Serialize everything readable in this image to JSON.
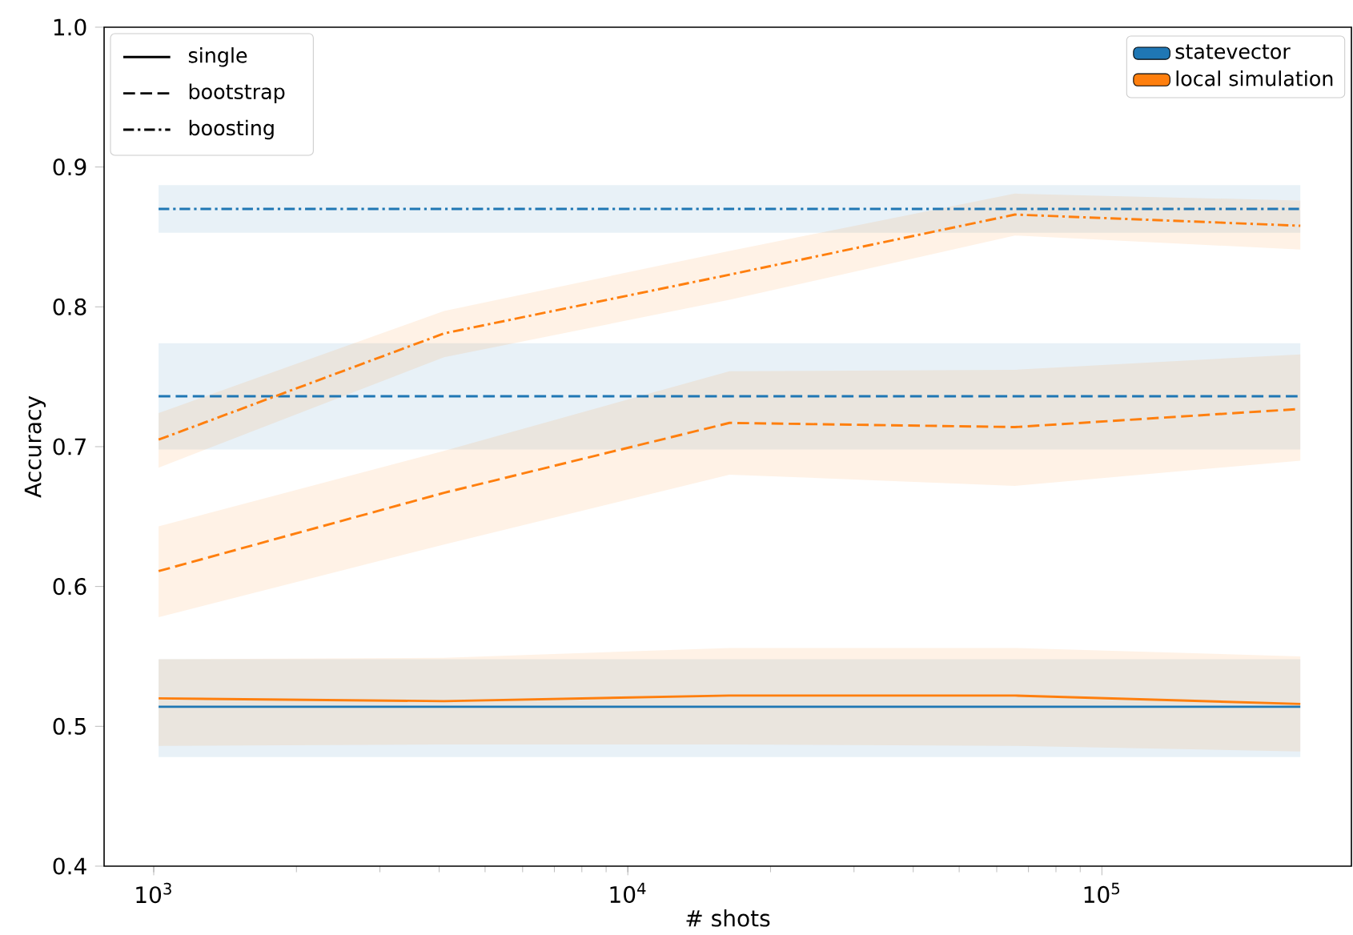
{
  "chart_data": {
    "type": "line",
    "xlabel": "# shots",
    "ylabel": "Accuracy",
    "log": "x",
    "x": [
      1024,
      4096,
      16384,
      65536,
      262144
    ],
    "xlim": [
      786,
      336000
    ],
    "ylim": [
      0.4,
      1.0
    ],
    "xticks": [
      {
        "value": 1000,
        "label": "10$^{3}$"
      },
      {
        "value": 10000,
        "label": "10$^{4}$"
      },
      {
        "value": 100000,
        "label": "10$^{5}$"
      }
    ],
    "yticks": [
      0.4,
      0.5,
      0.6,
      0.7,
      0.8,
      0.9,
      {
        "value": 1.0,
        "label": "1.0"
      }
    ],
    "grid": false,
    "legend": "top right",
    "annotations": [
      "single",
      "bootstrap",
      "boosting"
    ],
    "series": [
      {
        "name": "statevector",
        "color": "#1f77b4",
        "line_style": "solid",
        "values": [
          0.514,
          0.514,
          0.514,
          0.514,
          0.514
        ],
        "lower": [
          0.478,
          0.478,
          0.478,
          0.478,
          0.478
        ],
        "upper": [
          0.548,
          0.548,
          0.548,
          0.548,
          0.548
        ]
      },
      {
        "color": "#1f77b4",
        "line_style": "dashed",
        "values": [
          0.736,
          0.736,
          0.736,
          0.736,
          0.736
        ],
        "lower": [
          0.698,
          0.698,
          0.698,
          0.698,
          0.698
        ],
        "upper": [
          0.774,
          0.774,
          0.774,
          0.774,
          0.774
        ]
      },
      {
        "color": "#1f77b4",
        "line_style": "dashdot",
        "values": [
          0.87,
          0.87,
          0.87,
          0.87,
          0.87
        ],
        "lower": [
          0.853,
          0.853,
          0.853,
          0.853,
          0.853
        ],
        "upper": [
          0.887,
          0.887,
          0.887,
          0.887,
          0.887
        ]
      },
      {
        "name": "local simulation",
        "color": "#ff7f0e",
        "line_style": "solid",
        "values": [
          0.52,
          0.518,
          0.522,
          0.522,
          0.516
        ],
        "lower": [
          0.486,
          0.487,
          0.487,
          0.486,
          0.482
        ],
        "upper": [
          0.548,
          0.549,
          0.556,
          0.556,
          0.55
        ]
      },
      {
        "color": "#ff7f0e",
        "line_style": "dashed",
        "values": [
          0.611,
          0.667,
          0.717,
          0.714,
          0.727
        ],
        "lower": [
          0.578,
          0.63,
          0.68,
          0.672,
          0.69
        ],
        "upper": [
          0.643,
          0.697,
          0.754,
          0.755,
          0.766
        ]
      },
      {
        "color": "#ff7f0e",
        "line_style": "dashdot",
        "values": [
          0.705,
          0.781,
          0.823,
          0.866,
          0.858
        ],
        "lower": [
          0.685,
          0.764,
          0.805,
          0.851,
          0.841
        ],
        "upper": [
          0.724,
          0.797,
          0.84,
          0.881,
          0.876
        ]
      }
    ]
  }
}
